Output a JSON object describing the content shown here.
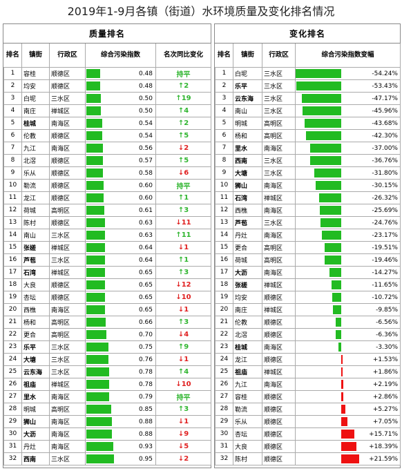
{
  "title": "2019年1-9月各镇（街道）水环境质量及变化排名情况",
  "quality": {
    "section_title": "质量排名",
    "headers": [
      "排名",
      "镇街",
      "行政区",
      "综合污染指数",
      "名次同比变化"
    ],
    "max_value": 0.95,
    "bar_color": "#22bb22",
    "rows": [
      {
        "rank": "1",
        "town": "容桂",
        "district": "顺德区",
        "value": 0.48,
        "value_text": "0.48",
        "dir": "flat",
        "change": "持平",
        "bold": false
      },
      {
        "rank": "2",
        "town": "均安",
        "district": "顺德区",
        "value": 0.48,
        "value_text": "0.48",
        "dir": "up",
        "change": "↑2",
        "bold": false
      },
      {
        "rank": "3",
        "town": "白坭",
        "district": "三水区",
        "value": 0.5,
        "value_text": "0.50",
        "dir": "up",
        "change": "↑19",
        "bold": false
      },
      {
        "rank": "4",
        "town": "南庄",
        "district": "禅城区",
        "value": 0.5,
        "value_text": "0.50",
        "dir": "up",
        "change": "↑4",
        "bold": false
      },
      {
        "rank": "5",
        "town": "桂城",
        "district": "南海区",
        "value": 0.54,
        "value_text": "0.54",
        "dir": "up",
        "change": "↑2",
        "bold": true
      },
      {
        "rank": "6",
        "town": "伦教",
        "district": "顺德区",
        "value": 0.54,
        "value_text": "0.54",
        "dir": "up",
        "change": "↑5",
        "bold": false
      },
      {
        "rank": "7",
        "town": "九江",
        "district": "南海区",
        "value": 0.56,
        "value_text": "0.56",
        "dir": "down",
        "change": "↓2",
        "bold": false
      },
      {
        "rank": "8",
        "town": "北滘",
        "district": "顺德区",
        "value": 0.57,
        "value_text": "0.57",
        "dir": "up",
        "change": "↑5",
        "bold": false
      },
      {
        "rank": "9",
        "town": "乐从",
        "district": "顺德区",
        "value": 0.58,
        "value_text": "0.58",
        "dir": "down",
        "change": "↓6",
        "bold": false
      },
      {
        "rank": "10",
        "town": "勒流",
        "district": "顺德区",
        "value": 0.6,
        "value_text": "0.60",
        "dir": "flat",
        "change": "持平",
        "bold": false
      },
      {
        "rank": "11",
        "town": "龙江",
        "district": "顺德区",
        "value": 0.6,
        "value_text": "0.60",
        "dir": "up",
        "change": "↑1",
        "bold": false
      },
      {
        "rank": "12",
        "town": "荷城",
        "district": "高明区",
        "value": 0.61,
        "value_text": "0.61",
        "dir": "up",
        "change": "↑3",
        "bold": false
      },
      {
        "rank": "13",
        "town": "陈村",
        "district": "顺德区",
        "value": 0.63,
        "value_text": "0.63",
        "dir": "down",
        "change": "↓11",
        "bold": false
      },
      {
        "rank": "14",
        "town": "南山",
        "district": "三水区",
        "value": 0.63,
        "value_text": "0.63",
        "dir": "up",
        "change": "↑11",
        "bold": false
      },
      {
        "rank": "15",
        "town": "张槎",
        "district": "禅城区",
        "value": 0.64,
        "value_text": "0.64",
        "dir": "down",
        "change": "↓1",
        "bold": true
      },
      {
        "rank": "16",
        "town": "芦苞",
        "district": "三水区",
        "value": 0.64,
        "value_text": "0.64",
        "dir": "up",
        "change": "↑1",
        "bold": true
      },
      {
        "rank": "17",
        "town": "石湾",
        "district": "禅城区",
        "value": 0.65,
        "value_text": "0.65",
        "dir": "up",
        "change": "↑3",
        "bold": true
      },
      {
        "rank": "18",
        "town": "大良",
        "district": "顺德区",
        "value": 0.65,
        "value_text": "0.65",
        "dir": "down",
        "change": "↓12",
        "bold": false
      },
      {
        "rank": "19",
        "town": "杏坛",
        "district": "顺德区",
        "value": 0.65,
        "value_text": "0.65",
        "dir": "down",
        "change": "↓10",
        "bold": false
      },
      {
        "rank": "20",
        "town": "西樵",
        "district": "南海区",
        "value": 0.65,
        "value_text": "0.65",
        "dir": "down",
        "change": "↓1",
        "bold": false
      },
      {
        "rank": "21",
        "town": "杨和",
        "district": "高明区",
        "value": 0.66,
        "value_text": "0.66",
        "dir": "up",
        "change": "↑3",
        "bold": false
      },
      {
        "rank": "22",
        "town": "更合",
        "district": "高明区",
        "value": 0.7,
        "value_text": "0.70",
        "dir": "down",
        "change": "↓4",
        "bold": false
      },
      {
        "rank": "23",
        "town": "乐平",
        "district": "三水区",
        "value": 0.75,
        "value_text": "0.75",
        "dir": "up",
        "change": "↑9",
        "bold": true
      },
      {
        "rank": "24",
        "town": "大塘",
        "district": "三水区",
        "value": 0.76,
        "value_text": "0.76",
        "dir": "down",
        "change": "↓1",
        "bold": true
      },
      {
        "rank": "25",
        "town": "云东海",
        "district": "三水区",
        "value": 0.78,
        "value_text": "0.78",
        "dir": "up",
        "change": "↑4",
        "bold": true
      },
      {
        "rank": "26",
        "town": "祖庙",
        "district": "禅城区",
        "value": 0.78,
        "value_text": "0.78",
        "dir": "down",
        "change": "↓10",
        "bold": true
      },
      {
        "rank": "27",
        "town": "里水",
        "district": "南海区",
        "value": 0.79,
        "value_text": "0.79",
        "dir": "flat",
        "change": "持平",
        "bold": true
      },
      {
        "rank": "28",
        "town": "明城",
        "district": "高明区",
        "value": 0.85,
        "value_text": "0.85",
        "dir": "up",
        "change": "↑3",
        "bold": false
      },
      {
        "rank": "29",
        "town": "狮山",
        "district": "南海区",
        "value": 0.88,
        "value_text": "0.88",
        "dir": "down",
        "change": "↓1",
        "bold": true
      },
      {
        "rank": "30",
        "town": "大沥",
        "district": "南海区",
        "value": 0.88,
        "value_text": "0.88",
        "dir": "down",
        "change": "↓9",
        "bold": true
      },
      {
        "rank": "31",
        "town": "丹灶",
        "district": "南海区",
        "value": 0.93,
        "value_text": "0.93",
        "dir": "down",
        "change": "↓5",
        "bold": false
      },
      {
        "rank": "32",
        "town": "西南",
        "district": "三水区",
        "value": 0.95,
        "value_text": "0.95",
        "dir": "down",
        "change": "↓2",
        "bold": true
      }
    ]
  },
  "change": {
    "section_title": "变化排名",
    "headers": [
      "排名",
      "镇街",
      "行政区",
      "综合污染指数变幅"
    ],
    "max_abs": 54.24,
    "neg_color": "#22bb22",
    "pos_color": "#ee1111",
    "rows": [
      {
        "rank": "1",
        "town": "白坭",
        "district": "三水区",
        "value": -54.24,
        "value_text": "-54.24%",
        "bold": false
      },
      {
        "rank": "2",
        "town": "乐平",
        "district": "三水区",
        "value": -53.43,
        "value_text": "-53.43%",
        "bold": true
      },
      {
        "rank": "3",
        "town": "云东海",
        "district": "三水区",
        "value": -47.17,
        "value_text": "-47.17%",
        "bold": true
      },
      {
        "rank": "4",
        "town": "南山",
        "district": "三水区",
        "value": -45.96,
        "value_text": "-45.96%",
        "bold": false
      },
      {
        "rank": "5",
        "town": "明城",
        "district": "高明区",
        "value": -43.68,
        "value_text": "-43.68%",
        "bold": false
      },
      {
        "rank": "6",
        "town": "杨和",
        "district": "高明区",
        "value": -42.3,
        "value_text": "-42.30%",
        "bold": false
      },
      {
        "rank": "7",
        "town": "里水",
        "district": "南海区",
        "value": -37.0,
        "value_text": "-37.00%",
        "bold": true
      },
      {
        "rank": "8",
        "town": "西南",
        "district": "三水区",
        "value": -36.76,
        "value_text": "-36.76%",
        "bold": true
      },
      {
        "rank": "9",
        "town": "大塘",
        "district": "三水区",
        "value": -31.8,
        "value_text": "-31.80%",
        "bold": true
      },
      {
        "rank": "10",
        "town": "狮山",
        "district": "南海区",
        "value": -30.15,
        "value_text": "-30.15%",
        "bold": true
      },
      {
        "rank": "11",
        "town": "石湾",
        "district": "禅城区",
        "value": -26.32,
        "value_text": "-26.32%",
        "bold": true
      },
      {
        "rank": "12",
        "town": "西樵",
        "district": "南海区",
        "value": -25.69,
        "value_text": "-25.69%",
        "bold": false
      },
      {
        "rank": "13",
        "town": "芦苞",
        "district": "三水区",
        "value": -24.76,
        "value_text": "-24.76%",
        "bold": true
      },
      {
        "rank": "14",
        "town": "丹灶",
        "district": "南海区",
        "value": -23.17,
        "value_text": "-23.17%",
        "bold": false
      },
      {
        "rank": "15",
        "town": "更合",
        "district": "高明区",
        "value": -19.51,
        "value_text": "-19.51%",
        "bold": false
      },
      {
        "rank": "16",
        "town": "荷城",
        "district": "高明区",
        "value": -19.46,
        "value_text": "-19.46%",
        "bold": false
      },
      {
        "rank": "17",
        "town": "大沥",
        "district": "南海区",
        "value": -14.27,
        "value_text": "-14.27%",
        "bold": true
      },
      {
        "rank": "18",
        "town": "张槎",
        "district": "禅城区",
        "value": -11.65,
        "value_text": "-11.65%",
        "bold": true
      },
      {
        "rank": "19",
        "town": "均安",
        "district": "顺德区",
        "value": -10.72,
        "value_text": "-10.72%",
        "bold": false
      },
      {
        "rank": "20",
        "town": "南庄",
        "district": "禅城区",
        "value": -9.85,
        "value_text": "-9.85%",
        "bold": false
      },
      {
        "rank": "21",
        "town": "伦教",
        "district": "顺德区",
        "value": -6.56,
        "value_text": "-6.56%",
        "bold": false
      },
      {
        "rank": "22",
        "town": "北滘",
        "district": "顺德区",
        "value": -6.36,
        "value_text": "-6.36%",
        "bold": false
      },
      {
        "rank": "23",
        "town": "桂城",
        "district": "南海区",
        "value": -3.3,
        "value_text": "-3.30%",
        "bold": true
      },
      {
        "rank": "24",
        "town": "龙江",
        "district": "顺德区",
        "value": 1.53,
        "value_text": "+1.53%",
        "bold": false
      },
      {
        "rank": "25",
        "town": "祖庙",
        "district": "禅城区",
        "value": 1.86,
        "value_text": "+1.86%",
        "bold": true
      },
      {
        "rank": "26",
        "town": "九江",
        "district": "南海区",
        "value": 2.19,
        "value_text": "+2.19%",
        "bold": false
      },
      {
        "rank": "27",
        "town": "容桂",
        "district": "顺德区",
        "value": 2.86,
        "value_text": "+2.86%",
        "bold": false
      },
      {
        "rank": "28",
        "town": "勒流",
        "district": "顺德区",
        "value": 5.27,
        "value_text": "+5.27%",
        "bold": false
      },
      {
        "rank": "29",
        "town": "乐从",
        "district": "顺德区",
        "value": 7.05,
        "value_text": "+7.05%",
        "bold": false
      },
      {
        "rank": "30",
        "town": "杏坛",
        "district": "顺德区",
        "value": 15.71,
        "value_text": "+15.71%",
        "bold": false
      },
      {
        "rank": "31",
        "town": "大良",
        "district": "顺德区",
        "value": 18.39,
        "value_text": "+18.39%",
        "bold": false
      },
      {
        "rank": "32",
        "town": "陈村",
        "district": "顺德区",
        "value": 21.59,
        "value_text": "+21.59%",
        "bold": false
      }
    ]
  }
}
